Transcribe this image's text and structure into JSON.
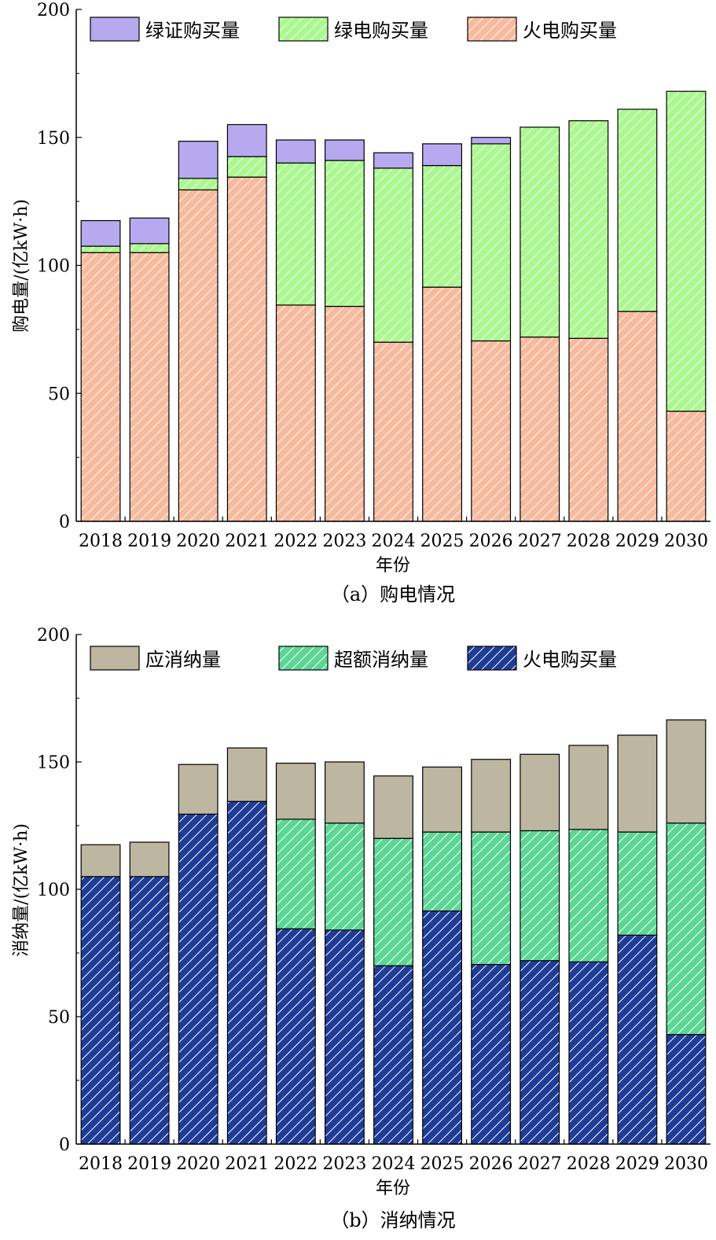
{
  "chart_data": [
    {
      "type": "bar",
      "stacked": true,
      "caption": "（a）购电情况",
      "xlabel": "年份",
      "ylabel": "购电量/(亿kW·h)",
      "ylim": [
        0,
        200
      ],
      "yticks": [
        0,
        50,
        100,
        150,
        200
      ],
      "legend_position": "top-left",
      "categories": [
        "2018",
        "2019",
        "2020",
        "2021",
        "2022",
        "2023",
        "2024",
        "2025",
        "2026",
        "2027",
        "2028",
        "2029",
        "2030"
      ],
      "series": [
        {
          "name": "火电购买量",
          "color": "#f8b99c",
          "hatch": true,
          "values": [
            105,
            105,
            129.5,
            134.5,
            84.5,
            84,
            70,
            91.5,
            70.5,
            72,
            71.5,
            82,
            43
          ]
        },
        {
          "name": "绿电购买量",
          "color": "#aaf98f",
          "hatch": true,
          "values": [
            2.5,
            3.5,
            4.5,
            8,
            55.5,
            57,
            68,
            47.5,
            77,
            82,
            85,
            79,
            125
          ]
        },
        {
          "name": "绿证购买量",
          "color": "#b6a9f0",
          "hatch": false,
          "values": [
            10,
            10,
            14.5,
            12.5,
            9,
            8,
            6,
            8.5,
            2.5,
            0,
            0,
            0,
            0
          ]
        }
      ],
      "legend_order": [
        "绿证购买量",
        "绿电购买量",
        "火电购买量"
      ]
    },
    {
      "type": "bar",
      "stacked": true,
      "caption": "（b）消纳情况",
      "xlabel": "年份",
      "ylabel": "消纳量/(亿kW·h)",
      "ylim": [
        0,
        200
      ],
      "yticks": [
        0,
        50,
        100,
        150,
        200
      ],
      "legend_position": "top-left",
      "categories": [
        "2018",
        "2019",
        "2020",
        "2021",
        "2022",
        "2023",
        "2024",
        "2025",
        "2026",
        "2027",
        "2028",
        "2029",
        "2030"
      ],
      "series": [
        {
          "name": "火电购买量",
          "color": "#1e3c96",
          "hatch": true,
          "values": [
            105,
            105,
            129.5,
            134.5,
            84.5,
            84,
            70,
            91.5,
            70.5,
            72,
            71.5,
            82,
            43
          ]
        },
        {
          "name": "超额消纳量",
          "color": "#5cd694",
          "hatch": true,
          "values": [
            0,
            0,
            0,
            0,
            43,
            42,
            50,
            31,
            52,
            51,
            52,
            40.5,
            83
          ]
        },
        {
          "name": "应消纳量",
          "color": "#bdb6a0",
          "hatch": false,
          "values": [
            12.5,
            13.5,
            19.5,
            21,
            22,
            24,
            24.5,
            25.5,
            28.5,
            30,
            33,
            38,
            40.5
          ]
        }
      ],
      "legend_order": [
        "应消纳量",
        "超额消纳量",
        "火电购买量"
      ]
    }
  ]
}
